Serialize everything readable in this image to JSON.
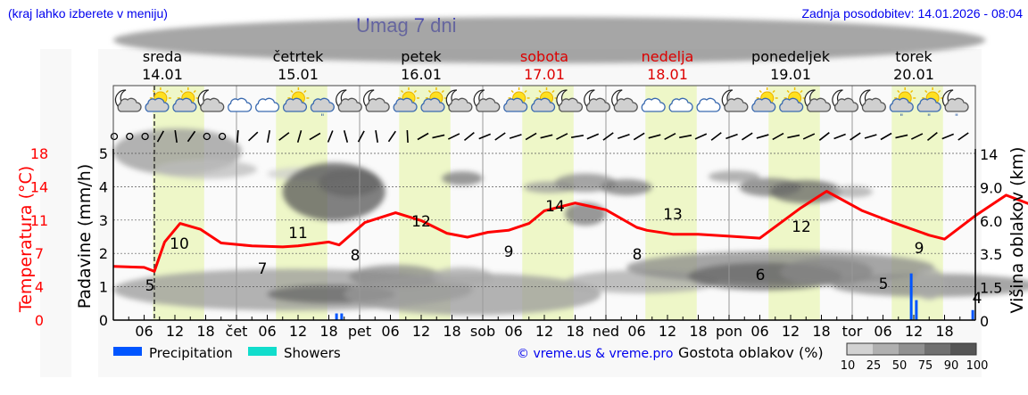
{
  "header": {
    "hint": "(kraj lahko izberete v meniju)",
    "title": "Umag 7 dni",
    "updated": "Zadnja posodobitev: 14.01.2026 - 08:04"
  },
  "days": [
    {
      "name": "sreda",
      "date": "14.01",
      "weekend": false
    },
    {
      "name": "četrtek",
      "date": "15.01",
      "weekend": false
    },
    {
      "name": "petek",
      "date": "16.01",
      "weekend": false
    },
    {
      "name": "sobota",
      "date": "17.01",
      "weekend": true
    },
    {
      "name": "nedelja",
      "date": "18.01",
      "weekend": true
    },
    {
      "name": "ponedeljek",
      "date": "19.01",
      "weekend": false
    },
    {
      "name": "torek",
      "date": "20.01",
      "weekend": false
    }
  ],
  "axes": {
    "temp_label": "Temperatura (°C)",
    "precip_label": "Padavine (mm/h)",
    "cloud_label": "Višina oblakov (km)",
    "temp_ticks": [
      "18",
      "14",
      "11",
      "7",
      "4",
      "0"
    ],
    "precip_ticks": [
      "5",
      "4",
      "3",
      "2",
      "1",
      "0"
    ],
    "cloud_ticks": [
      "14",
      "9.0",
      "6.0",
      "3.5",
      "1.5",
      "0"
    ],
    "x_ticks": [
      "06",
      "12",
      "18",
      "čet",
      "06",
      "12",
      "18",
      "pet",
      "06",
      "12",
      "18",
      "sob",
      "06",
      "12",
      "18",
      "ned",
      "06",
      "12",
      "18",
      "pon",
      "06",
      "12",
      "18",
      "tor",
      "06",
      "12",
      "18"
    ]
  },
  "legend": {
    "precipitation": "Precipitation",
    "showers": "Showers",
    "credit": "© vreme.us & vreme.pro",
    "cloud_density_label": "Gostota oblakov (%)",
    "cloud_density_ticks": [
      "10",
      "25",
      "50",
      "75",
      "90",
      "100"
    ]
  },
  "colors": {
    "temperature": "#ff0000",
    "precipitation": "#0055ff",
    "showers": "#11ddcc",
    "daylight": "#eef7c8",
    "weekend": "#dd0000",
    "link": "#0000ee"
  },
  "chart_data": {
    "type": "line",
    "title": "Umag 7 dni",
    "xlabel": "",
    "ylabel": "Temperatura (°C)",
    "ylim": [
      0,
      18
    ],
    "grid": true,
    "series": [
      {
        "name": "Temperatura (°C)",
        "x_hours": [
          0,
          6,
          8,
          10,
          13,
          17,
          21,
          27,
          33,
          36,
          39,
          42,
          44,
          49,
          55,
          60,
          65,
          69,
          73,
          77,
          81,
          84,
          90,
          96,
          102,
          104,
          109,
          114,
          120,
          126,
          134,
          139,
          146,
          152,
          159,
          162,
          168,
          174,
          182,
          186,
          192,
          197,
          201,
          204,
          210,
          216,
          222,
          229,
          236,
          240,
          246,
          252,
          257,
          262,
          268
        ],
        "values": [
          5.5,
          5.4,
          5.0,
          8.0,
          9.9,
          9.3,
          7.9,
          7.6,
          7.5,
          7.6,
          7.8,
          8.0,
          7.7,
          10.0,
          11.0,
          10.2,
          8.9,
          8.5,
          9.0,
          9.2,
          9.9,
          11.2,
          12.0,
          11.3,
          9.5,
          9.2,
          8.8,
          8.8,
          8.6,
          8.4,
          11.5,
          13.2,
          11.2,
          10.0,
          8.7,
          8.3,
          10.7,
          12.8,
          11.2,
          9.5,
          8.7,
          8.0,
          7.5,
          6.5,
          8.5,
          11.8,
          9.6,
          8.2,
          7.0,
          6.5,
          6.3,
          8.2,
          9.5,
          7.3,
          4.5
        ],
        "annotations": [
          {
            "hour": 7,
            "label": "5"
          },
          {
            "hour": 13,
            "label": "10"
          },
          {
            "hour": 29,
            "label": "7"
          },
          {
            "hour": 37,
            "label": "11"
          },
          {
            "hour": 47,
            "label": "8"
          },
          {
            "hour": 60,
            "label": "12"
          },
          {
            "hour": 77,
            "label": "9"
          },
          {
            "hour": 86,
            "label": "14"
          },
          {
            "hour": 101,
            "label": "8"
          },
          {
            "hour": 108,
            "label": "13"
          },
          {
            "hour": 125,
            "label": "6"
          },
          {
            "hour": 132,
            "label": "12"
          },
          {
            "hour": 149,
            "label": "5"
          },
          {
            "hour": 156,
            "label": "9"
          },
          {
            "hour": 168,
            "label": "4"
          }
        ]
      },
      {
        "name": "Precipitation (mm/h)",
        "x_hours": [
          43.5,
          44.5,
          155.5,
          156.5,
          167.5
        ],
        "values": [
          0.2,
          0.2,
          1.4,
          0.6,
          0.3
        ]
      }
    ],
    "secondary_axes": {
      "precip_ylim": [
        0,
        5
      ],
      "cloud_height_ticks_km": [
        0,
        1.5,
        3.5,
        6.0,
        9.0,
        14
      ]
    },
    "legend": [
      "Precipitation",
      "Showers"
    ],
    "cloud_density_scale": [
      10,
      25,
      50,
      75,
      90,
      100
    ],
    "weather_icons": [
      "night-partly-cloudy",
      "day-partly-sunny",
      "day-partly-sunny",
      "night-partly-cloudy",
      "cloudy",
      "cloudy",
      "day-partly-sunny",
      "drizzle",
      "night-partly-cloudy",
      "night-partly-cloudy",
      "day-partly-sunny",
      "day-partly-sunny",
      "night-partly-cloudy",
      "night-partly-cloudy",
      "day-partly-sunny",
      "day-partly-sunny",
      "night-partly-cloudy",
      "night-partly-cloudy",
      "night-partly-cloudy",
      "cloudy",
      "cloudy",
      "cloudy",
      "night-partly-cloudy",
      "day-partly-sunny",
      "day-partly-sunny",
      "night-partly-cloudy",
      "night-partly-cloudy",
      "night-partly-cloudy",
      "day-sun-rain",
      "day-sun-rain",
      "night-rain"
    ]
  }
}
